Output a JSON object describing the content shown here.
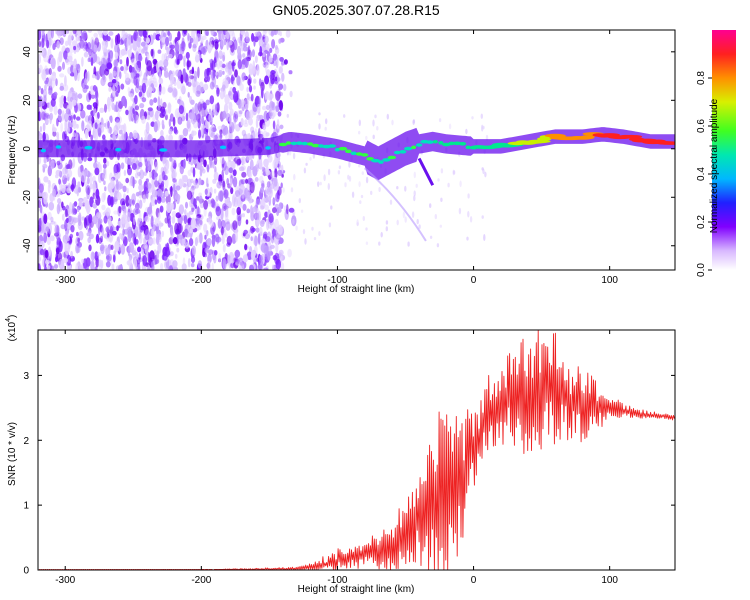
{
  "title": "GN05.2025.307.07.28.R15",
  "colors": {
    "snr_line": "#ee2222",
    "axis": "#000000",
    "background": "#ffffff"
  },
  "chart_data": [
    {
      "type": "heatmap",
      "name": "spectrogram",
      "xlabel": "Height of straight line (km)",
      "ylabel": "Frequency (Hz)",
      "xlim": [
        -320,
        148
      ],
      "ylim": [
        -50,
        49
      ],
      "xticks": [
        -300,
        -200,
        -100,
        0,
        100
      ],
      "yticks": [
        -40,
        -20,
        0,
        20,
        40
      ],
      "noise_region_x": [
        -320,
        -140
      ],
      "ridge": {
        "x": [
          -320,
          -260,
          -200,
          -150,
          -135,
          -120,
          -100,
          -80,
          -70,
          -60,
          -50,
          -40,
          -30,
          -20,
          0,
          20,
          40,
          60,
          80,
          95,
          110,
          130,
          148
        ],
        "freq": [
          0,
          0,
          0,
          1,
          3,
          2,
          0,
          -3,
          -6,
          -3,
          0,
          2,
          3,
          2,
          1,
          1,
          3,
          5,
          5,
          6,
          5,
          3,
          3
        ]
      },
      "colorbar": {
        "label": "Normalized spectral amplitude",
        "range": [
          0.0,
          1.0
        ],
        "ticks": [
          "0.0",
          "0.2",
          "0.4",
          "0.6",
          "0.8"
        ],
        "colormap": "rainbow"
      }
    },
    {
      "type": "line",
      "name": "snr",
      "xlabel": "Height of straight line (km)",
      "ylabel": "SNR (10 * v/v)",
      "y_scale_label": "(x10",
      "y_scale_exponent": "4",
      "xlim": [
        -320,
        148
      ],
      "ylim": [
        0,
        3.7
      ],
      "xticks": [
        -300,
        -200,
        -100,
        0,
        100
      ],
      "yticks": [
        0,
        1,
        2,
        3
      ],
      "envelope": {
        "x": [
          -320,
          -200,
          -130,
          -115,
          -100,
          -80,
          -60,
          -45,
          -35,
          -25,
          -15,
          -5,
          0,
          10,
          20,
          30,
          40,
          50,
          60,
          70,
          80,
          90,
          100,
          110,
          120,
          135,
          148
        ],
        "mean": [
          0.0,
          0.0,
          0.02,
          0.05,
          0.15,
          0.25,
          0.4,
          0.6,
          0.9,
          1.0,
          1.3,
          1.5,
          1.8,
          2.4,
          2.5,
          2.7,
          2.6,
          2.8,
          2.8,
          2.6,
          2.6,
          2.5,
          2.5,
          2.45,
          2.4,
          2.38,
          2.35
        ],
        "amp": [
          0.0,
          0.005,
          0.02,
          0.08,
          0.15,
          0.15,
          0.35,
          0.5,
          0.8,
          1.3,
          1.0,
          0.8,
          0.6,
          0.5,
          0.55,
          0.7,
          0.7,
          0.7,
          0.75,
          0.6,
          0.5,
          0.35,
          0.2,
          0.1,
          0.06,
          0.04,
          0.03
        ]
      },
      "peak": {
        "x": 60,
        "y": 3.65
      }
    }
  ]
}
